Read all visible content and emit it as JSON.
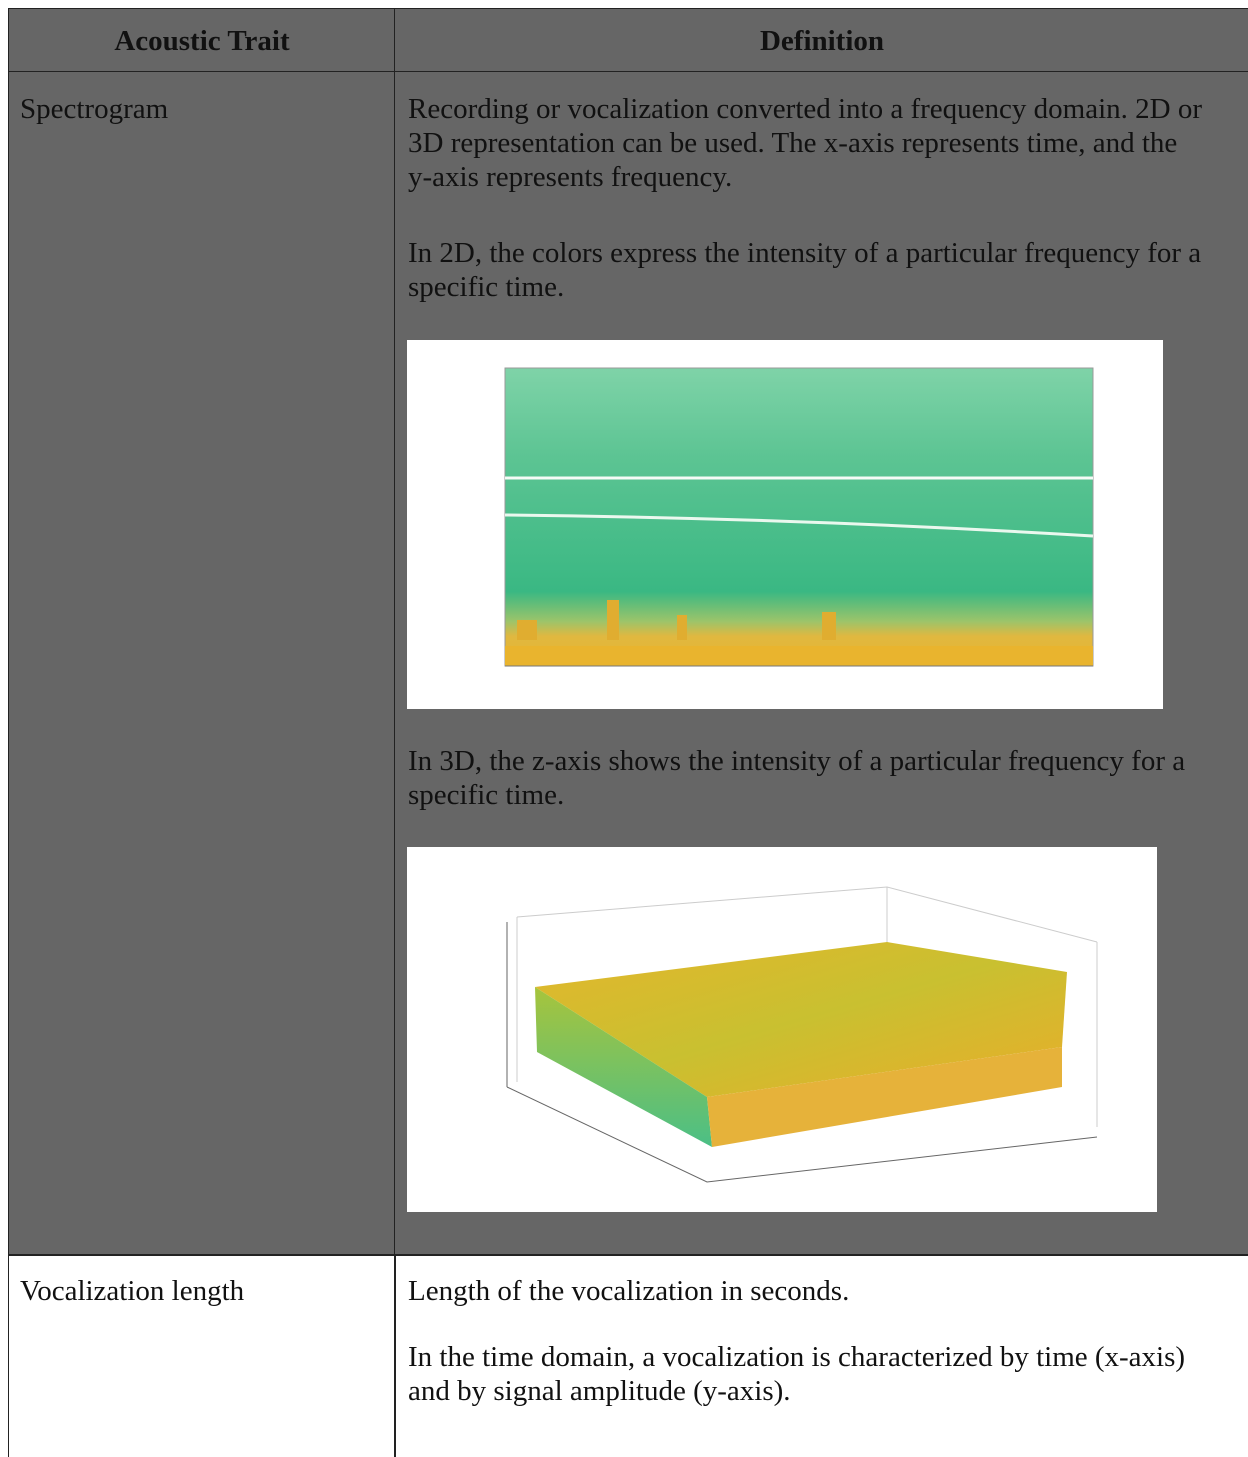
{
  "table": {
    "header": [
      "Acoustic Trait",
      "Definition"
    ],
    "rows": [
      {
        "trait": "Spectrogram",
        "paragraphs": [
          "Recording or vocalization converted into a frequency domain. 2D or 3D representation can be used. The x-axis represents time, and the y-axis represents frequency.",
          "In 2D, the colors express the intensity of a particular frequency for a specific time.",
          "In 3D, the z-axis shows the intensity of a particular frequency for a specific time."
        ]
      },
      {
        "trait": "Vocalization length",
        "paragraphs": [
          "Length of the vocalization in seconds.",
          "In the time domain, a vocalization is characterized by time (x-axis) and by signal amplitude (y-axis)."
        ]
      }
    ]
  }
}
